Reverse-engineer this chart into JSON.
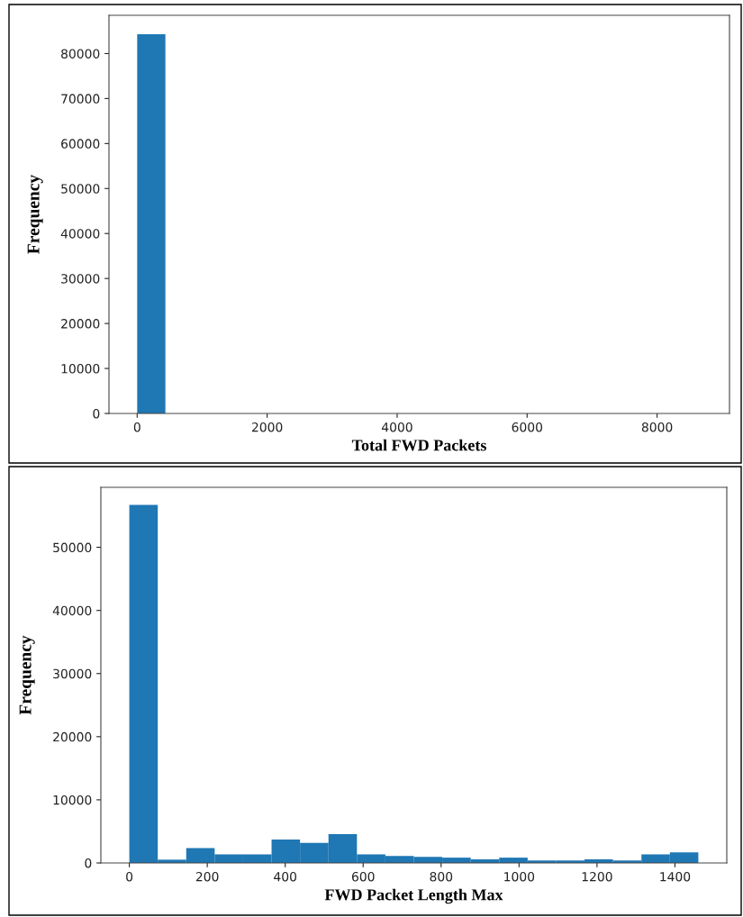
{
  "chart_data": [
    {
      "type": "histogram",
      "xlabel": "Total FWD Packets",
      "ylabel": "Frequency",
      "color": "#1f77b4",
      "bins": [
        0,
        434,
        868,
        1302,
        1736,
        2170,
        2604,
        3038,
        3472,
        3906,
        4340,
        4774,
        5208,
        5642,
        6076,
        6510,
        6944,
        7378,
        7812,
        8246,
        8680
      ],
      "values": [
        84300,
        0,
        0,
        0,
        0,
        0,
        0,
        0,
        0,
        0,
        0,
        0,
        0,
        0,
        0,
        0,
        0,
        0,
        0,
        0
      ],
      "xlim": [
        -434,
        9114
      ],
      "ylim": [
        0,
        88500
      ],
      "xticks": [
        0,
        2000,
        4000,
        6000,
        8000
      ],
      "yticks": [
        0,
        10000,
        20000,
        30000,
        40000,
        50000,
        60000,
        70000,
        80000
      ],
      "grid": false
    },
    {
      "type": "histogram",
      "xlabel": "FWD Packet Length Max",
      "ylabel": "Frequency",
      "color": "#1f77b4",
      "bins": [
        0,
        73,
        146,
        219,
        292,
        365,
        438,
        511,
        584,
        657,
        730,
        803,
        876,
        949,
        1022,
        1095,
        1168,
        1241,
        1314,
        1387,
        1460
      ],
      "values": [
        56700,
        520,
        2340,
        1360,
        1360,
        3700,
        3180,
        4550,
        1360,
        1100,
        970,
        840,
        580,
        840,
        390,
        390,
        580,
        390,
        1360,
        1690
      ],
      "xlim": [
        -73,
        1533
      ],
      "ylim": [
        0,
        59500
      ],
      "xticks": [
        0,
        200,
        400,
        600,
        800,
        1000,
        1200,
        1400
      ],
      "yticks": [
        0,
        10000,
        20000,
        30000,
        40000,
        50000
      ],
      "grid": false
    }
  ]
}
